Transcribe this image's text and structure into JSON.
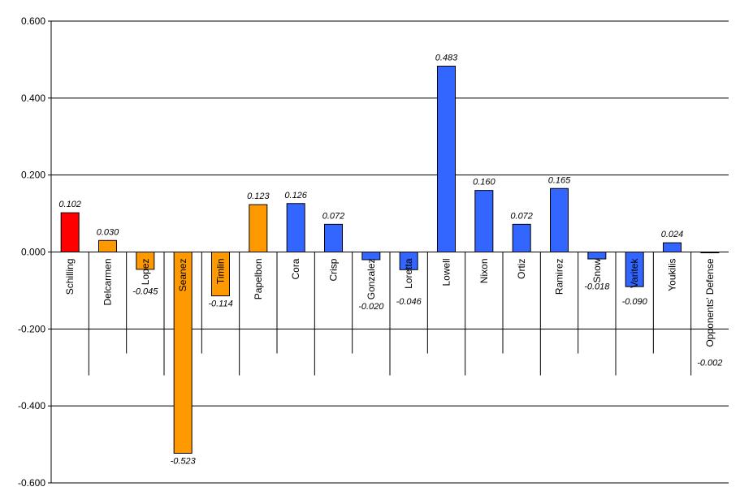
{
  "chart_data": {
    "type": "bar",
    "title": "",
    "xlabel": "",
    "ylabel": "",
    "ylim": [
      -0.6,
      0.6
    ],
    "yticks": [
      "0.600",
      "0.400",
      "0.200",
      "0.000",
      "-0.200",
      "-0.400",
      "-0.600"
    ],
    "grid": true,
    "legend": "none",
    "categories": [
      "Schilling",
      "Delcarmen",
      "Lopez",
      "Seanez",
      "Timlin",
      "Papelbon",
      "Cora",
      "Crisp",
      "Gonzalez",
      "Loretta",
      "Lowell",
      "Nixon",
      "Ortiz",
      "Ramirez",
      "Snow",
      "Varitek",
      "Youkilis",
      "Opponents' Defense"
    ],
    "values": [
      0.102,
      0.03,
      -0.045,
      -0.523,
      -0.114,
      0.123,
      0.126,
      0.072,
      -0.02,
      -0.046,
      0.483,
      0.16,
      0.072,
      0.165,
      -0.018,
      -0.09,
      0.024,
      -0.002
    ],
    "labels": [
      "0.102",
      "0.030",
      "-0.045",
      "-0.523",
      "-0.114",
      "0.123",
      "0.126",
      "0.072",
      "-0.020",
      "-0.046",
      "0.483",
      "0.160",
      "0.072",
      "0.165",
      "-0.018",
      "-0.090",
      "0.024",
      "-0.002"
    ],
    "colors": [
      "#ff0000",
      "#ff9900",
      "#ff9900",
      "#ff9900",
      "#ff9900",
      "#ff9900",
      "#3366ff",
      "#3366ff",
      "#3366ff",
      "#3366ff",
      "#3366ff",
      "#3366ff",
      "#3366ff",
      "#3366ff",
      "#3366ff",
      "#3366ff",
      "#3366ff",
      "#3366ff"
    ]
  }
}
